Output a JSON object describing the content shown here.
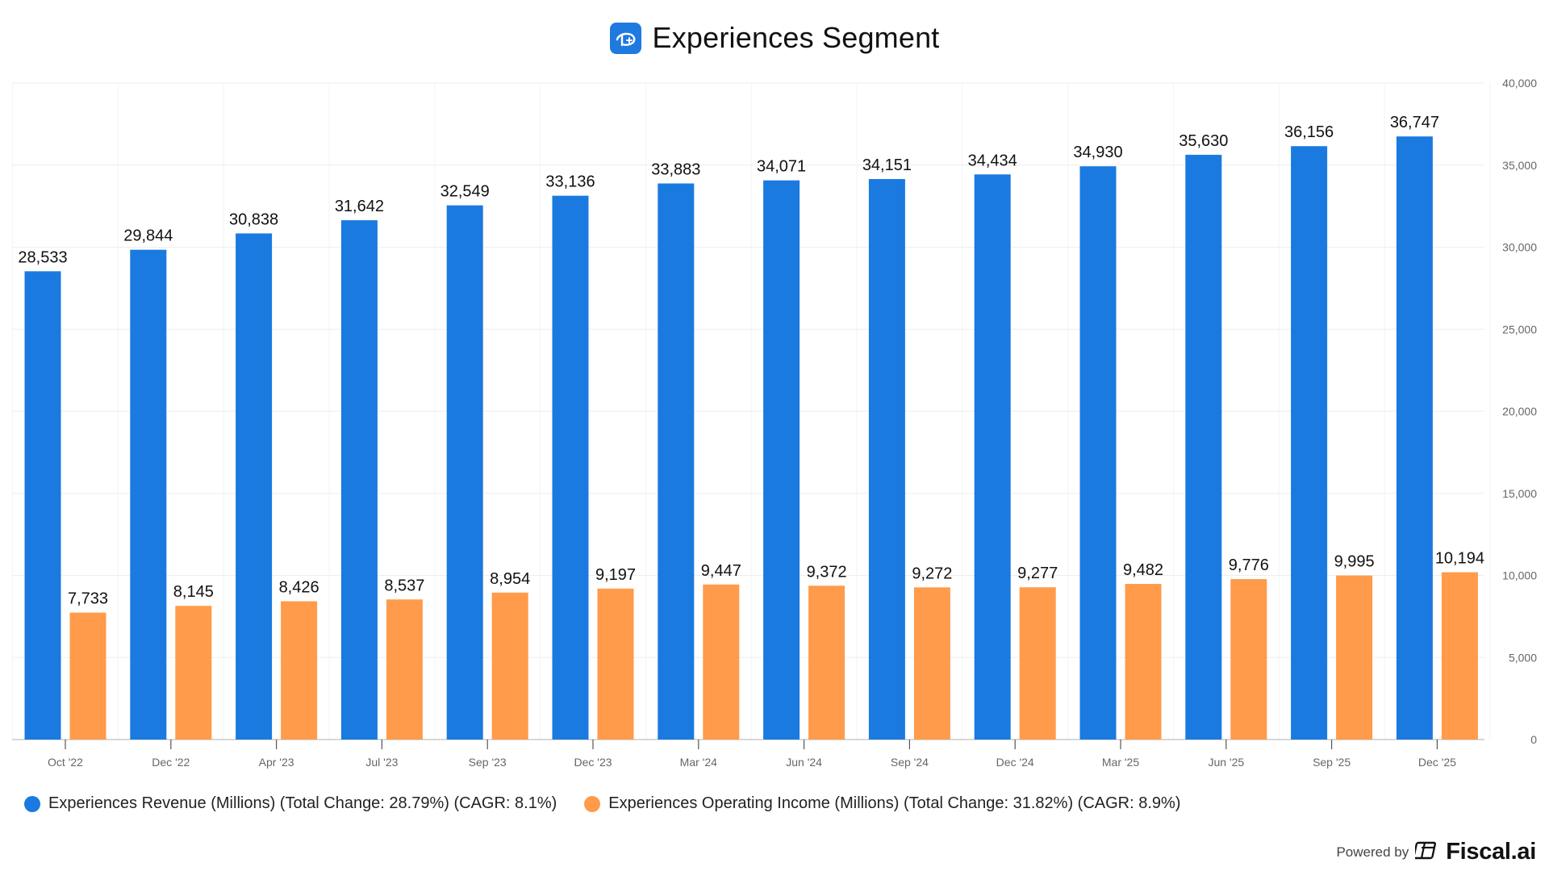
{
  "header": {
    "title": "Experiences Segment",
    "logo_icon": "disney-plus-icon",
    "logo_color": "#1f7ae0"
  },
  "colors": {
    "revenue": "#1a7ae0",
    "income": "#ff9b4a",
    "grid": "#eeeeee",
    "axis_text": "#666666",
    "label_text": "#111111"
  },
  "chart_data": {
    "type": "bar",
    "title": "Experiences Segment",
    "xlabel": "",
    "ylabel": "",
    "ylim": [
      0,
      40000
    ],
    "yticks": [
      0,
      5000,
      10000,
      15000,
      20000,
      25000,
      30000,
      35000,
      40000
    ],
    "ytick_labels": [
      "0",
      "5,000",
      "10,000",
      "15,000",
      "20,000",
      "25,000",
      "30,000",
      "35,000",
      "40,000"
    ],
    "y_axis_side": "right",
    "grid": true,
    "legend_position": "bottom-left",
    "categories": [
      "Oct '22",
      "Dec '22",
      "Apr '23",
      "Jul '23",
      "Sep '23",
      "Dec '23",
      "Mar '24",
      "Jun '24",
      "Sep '24",
      "Dec '24",
      "Mar '25",
      "Jun '25",
      "Sep '25",
      "Dec '25"
    ],
    "series": [
      {
        "name": "Experiences Revenue (Millions) (Total Change: 28.79%) (CAGR: 8.1%)",
        "values": [
          28533,
          29844,
          30838,
          31642,
          32549,
          33136,
          33883,
          34071,
          34151,
          34434,
          34930,
          35630,
          36156,
          36747
        ],
        "labels": [
          "28,533",
          "29,844",
          "30,838",
          "31,642",
          "32,549",
          "33,136",
          "33,883",
          "34,071",
          "34,151",
          "34,434",
          "34,930",
          "35,630",
          "36,156",
          "36,747"
        ]
      },
      {
        "name": "Experiences Operating Income (Millions) (Total Change: 31.82%) (CAGR: 8.9%)",
        "values": [
          7733,
          8145,
          8426,
          8537,
          8954,
          9197,
          9447,
          9372,
          9272,
          9277,
          9482,
          9776,
          9995,
          10194
        ],
        "labels": [
          "7,733",
          "8,145",
          "8,426",
          "8,537",
          "8,954",
          "9,197",
          "9,447",
          "9,372",
          "9,272",
          "9,277",
          "9,482",
          "9,776",
          "9,995",
          "10,194"
        ]
      }
    ]
  },
  "footer": {
    "powered_by": "Powered by",
    "brand": "Fiscal.ai",
    "brand_icon": "fiscal-logo-icon"
  }
}
